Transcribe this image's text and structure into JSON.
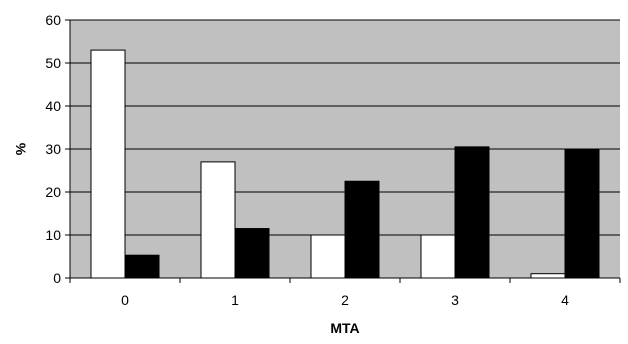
{
  "chart_data": {
    "type": "bar",
    "title": "",
    "xlabel": "MTA",
    "ylabel": "%",
    "categories": [
      "0",
      "1",
      "2",
      "3",
      "4"
    ],
    "series": [
      {
        "values": [
          53,
          27,
          10,
          10,
          1
        ],
        "color": "#ffffff"
      },
      {
        "values": [
          5.3,
          11.5,
          22.5,
          30.5,
          29.8
        ],
        "color": "#000000"
      }
    ],
    "ylim": [
      0,
      60
    ],
    "yticks": [
      0,
      10,
      20,
      30,
      40,
      50,
      60
    ],
    "grid": true,
    "plot_background": "#c0c0c0",
    "legend": "none"
  }
}
